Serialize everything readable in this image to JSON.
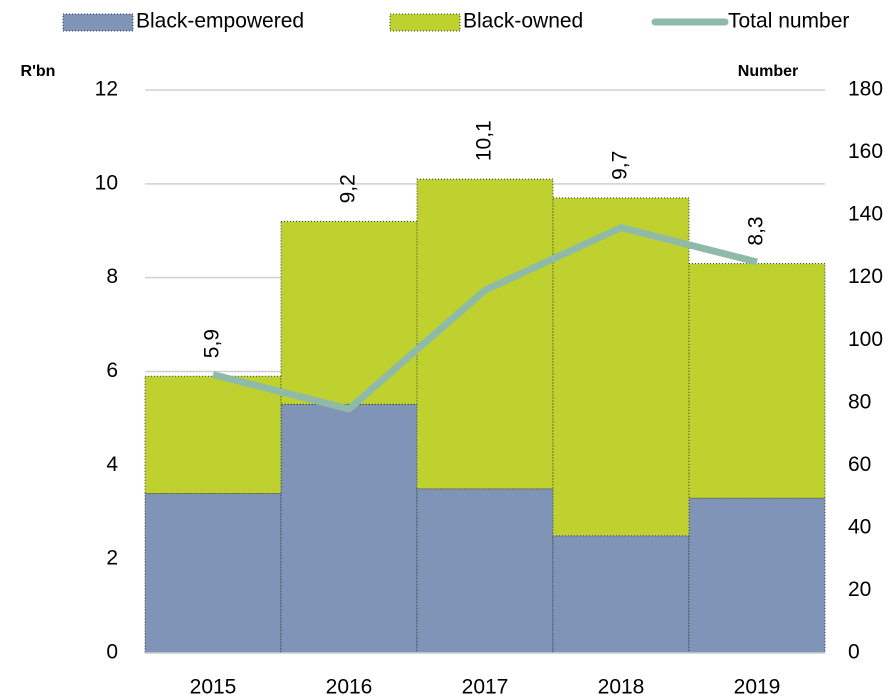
{
  "chart_data": {
    "type": "bar",
    "stacked": true,
    "categories": [
      "2015",
      "2016",
      "2017",
      "2018",
      "2019"
    ],
    "series": [
      {
        "name": "Black-empowered",
        "color": "#7f94b6",
        "values": [
          3.4,
          5.3,
          3.5,
          2.5,
          3.3
        ]
      },
      {
        "name": "Black-owned",
        "color": "#bfd12e",
        "values": [
          2.5,
          3.9,
          6.6,
          7.2,
          5.0
        ]
      },
      {
        "name": "Total number",
        "color": "#8fbaa8",
        "type": "line",
        "axis": "y2",
        "values": [
          89,
          78,
          116,
          136,
          125
        ]
      }
    ],
    "totals": {
      "values": [
        5.9,
        9.2,
        10.1,
        9.7,
        8.3
      ],
      "value_labels": [
        "5,9",
        "9,2",
        "10,1",
        "9,7",
        "8,3"
      ]
    },
    "y_label": "R'bn",
    "y2_label": "Number",
    "ylim": [
      0,
      12
    ],
    "yticks": [
      0,
      2,
      4,
      6,
      8,
      10,
      12
    ],
    "y2lim": [
      0,
      180
    ],
    "y2ticks": [
      0,
      20,
      40,
      60,
      80,
      100,
      120,
      140,
      160,
      180
    ],
    "grid": true,
    "legend": "top"
  }
}
